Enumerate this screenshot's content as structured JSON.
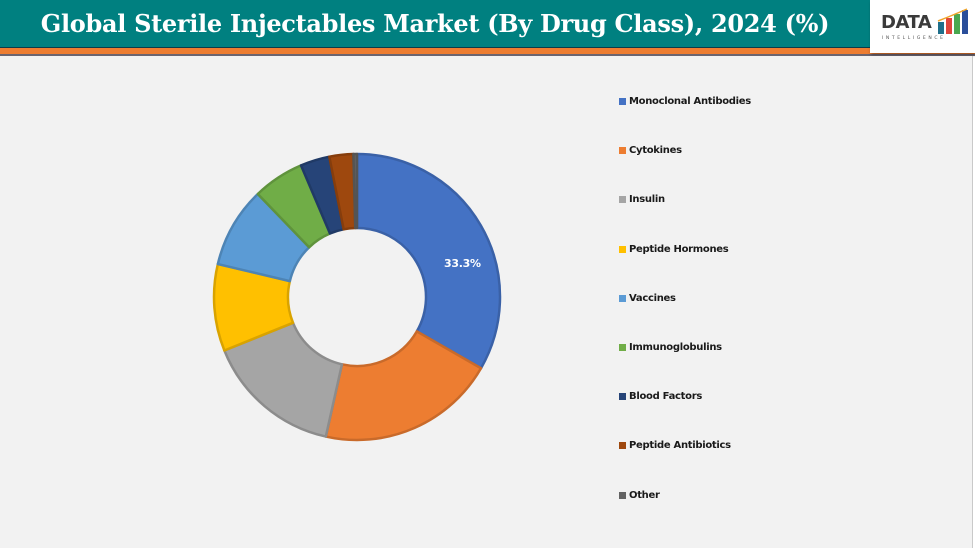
{
  "header": {
    "title": "Global Sterile Injectables Market (By Drug Class), 2024 (%)",
    "logo_word": "DATA",
    "logo_sub": "INTELLIGENCE"
  },
  "colors": {
    "header_bg": "#008080",
    "accent_bar": "#ed7d31",
    "chart_bg": "#f2f2f2"
  },
  "chart_data": {
    "type": "pie",
    "subtype": "donut",
    "title": "Global Sterile Injectables Market (By Drug Class), 2024 (%)",
    "categories": [
      "Monoclonal Antibodies",
      "Cytokines",
      "Insulin",
      "Peptide Hormones",
      "Vaccines",
      "Immunoglobulins",
      "Blood Factors",
      "Peptide Antibiotics",
      "Other"
    ],
    "values": [
      33.3,
      20.2,
      15.4,
      9.8,
      9.1,
      5.8,
      3.3,
      2.7,
      0.4
    ],
    "colors": [
      "#4472c4",
      "#ed7d31",
      "#a5a5a5",
      "#ffc000",
      "#5b9bd5",
      "#70ad47",
      "#264478",
      "#9e480e",
      "#636363"
    ],
    "data_labels": [
      {
        "category": "Monoclonal Antibodies",
        "text": "33.3%"
      }
    ],
    "legend_position": "right",
    "start_angle_deg": 0,
    "direction": "clockwise"
  },
  "legend": {
    "items": [
      {
        "label": "Monoclonal Antibodies",
        "color": "#4472c4"
      },
      {
        "label": "Cytokines",
        "color": "#ed7d31"
      },
      {
        "label": "Insulin",
        "color": "#a5a5a5"
      },
      {
        "label": "Peptide Hormones",
        "color": "#ffc000"
      },
      {
        "label": "Vaccines",
        "color": "#5b9bd5"
      },
      {
        "label": "Immunoglobulins",
        "color": "#70ad47"
      },
      {
        "label": "Blood Factors",
        "color": "#264478"
      },
      {
        "label": "Peptide Antibiotics",
        "color": "#9e480e"
      },
      {
        "label": "Other",
        "color": "#636363"
      }
    ]
  },
  "labels": {
    "monoclonal_pct": "33.3%"
  }
}
